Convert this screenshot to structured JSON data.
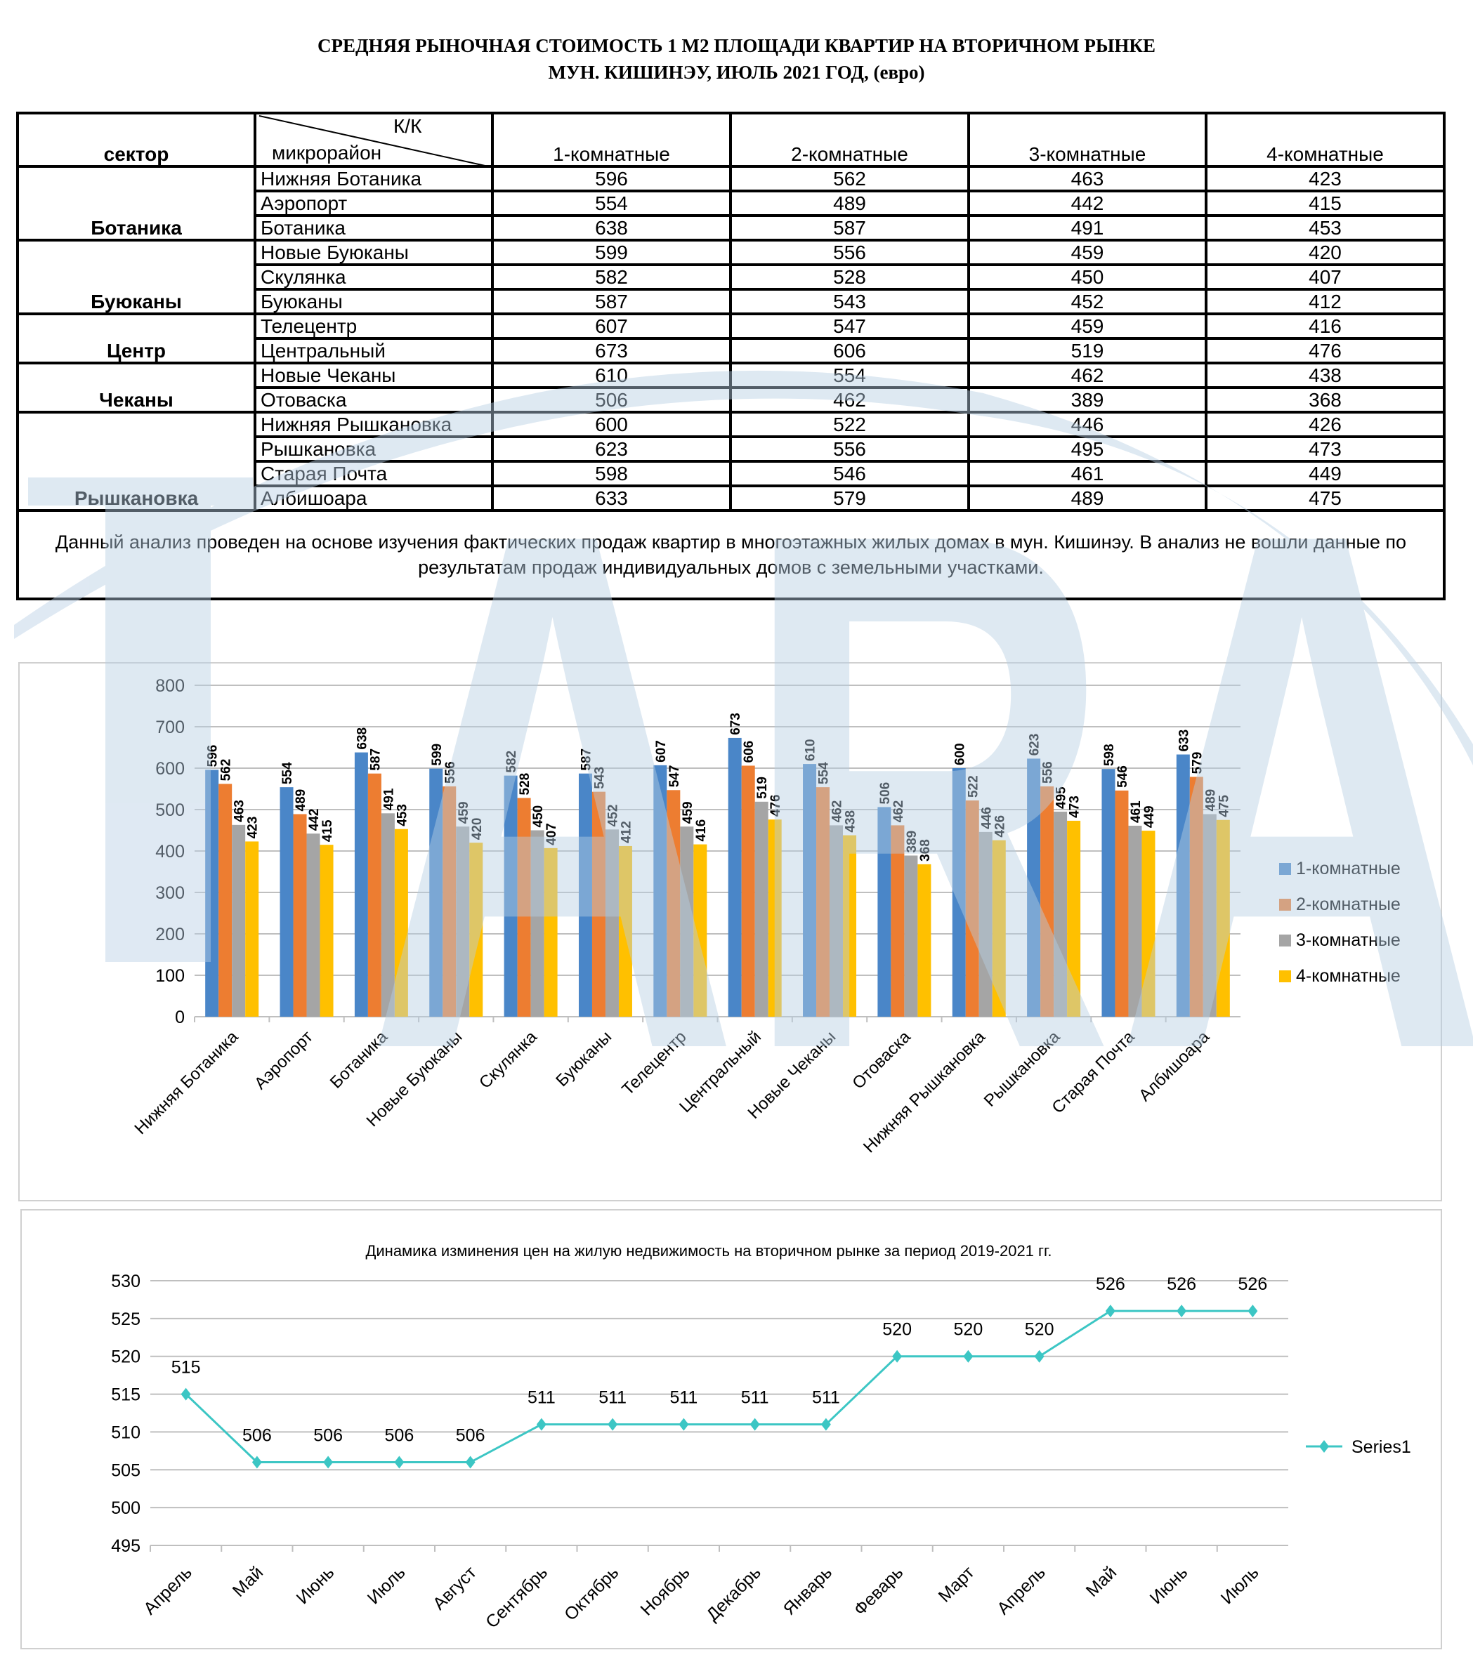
{
  "title_line1": "СРЕДНЯЯ  РЫНОЧНАЯ  СТОИМОСТЬ  1 М2  ПЛОЩАДИ  КВАРТИР НА ВТОРИЧНОМ РЫНКЕ",
  "title_line2": "МУН.  КИШИНЭУ, ИЮЛЬ 2021 ГОД, (евро)",
  "watermark_logo": "ARA",
  "colors": {
    "c1": "#4a86c8",
    "c2": "#ed7d31",
    "c3": "#a5a5a5",
    "c4": "#ffc000",
    "line": "#3cc6c4",
    "watermark": "#b7cfe4"
  },
  "table": {
    "header": {
      "sector": "сектор",
      "kk": "К/К",
      "district": "микрорайон",
      "cols": [
        "1-комнатные",
        "2-комнатные",
        "3-комнатные",
        "4-комнатные"
      ]
    },
    "sectors": [
      {
        "name": "Ботаника",
        "rows": [
          [
            "Нижняя Ботаника",
            596,
            562,
            463,
            423
          ],
          [
            "Аэропорт",
            554,
            489,
            442,
            415
          ],
          [
            "Ботаника",
            638,
            587,
            491,
            453
          ]
        ]
      },
      {
        "name": "Буюканы",
        "rows": [
          [
            "Новые Буюканы",
            599,
            556,
            459,
            420
          ],
          [
            "Скулянка",
            582,
            528,
            450,
            407
          ],
          [
            "Буюканы",
            587,
            543,
            452,
            412
          ]
        ]
      },
      {
        "name": "Центр",
        "rows": [
          [
            "Телецентр",
            607,
            547,
            459,
            416
          ],
          [
            "Центральный",
            673,
            606,
            519,
            476
          ]
        ]
      },
      {
        "name": "Чеканы",
        "rows": [
          [
            "Новые Чеканы",
            610,
            554,
            462,
            438
          ],
          [
            "Отоваска",
            506,
            462,
            389,
            368
          ]
        ]
      },
      {
        "name": "Рышкановка",
        "rows": [
          [
            "Нижняя Рышкановка",
            600,
            522,
            446,
            426
          ],
          [
            "Рышкановка",
            623,
            556,
            495,
            473
          ],
          [
            "Старая Почта",
            598,
            546,
            461,
            449
          ],
          [
            "Албишоара",
            633,
            579,
            489,
            475
          ]
        ]
      }
    ],
    "note": "Данный анализ проведен на основе изучения фактических продаж квартир в многоэтажных жилых домах в мун. Кишинэу. В анализ не вошли данные по результатам  продаж индивидуальных домов с земельными участками."
  },
  "chart_data": [
    {
      "type": "bar",
      "title": "",
      "xlabel": "",
      "ylabel": "",
      "ylim": [
        0,
        800
      ],
      "yticks": [
        0,
        100,
        200,
        300,
        400,
        500,
        600,
        700,
        800
      ],
      "grid": true,
      "legend": "right",
      "categories": [
        "Нижняя Ботаника",
        "Аэропорт",
        "Ботаника",
        "Новые Буюканы",
        "Скулянка",
        "Буюканы",
        "Телецентр",
        "Центральный",
        "Новые Чеканы",
        "Отоваска",
        "Нижняя Рышкановка",
        "Рышкановка",
        "Старая Почта",
        "Албишоара"
      ],
      "series": [
        {
          "name": "1-комнатные",
          "values": [
            596,
            554,
            638,
            599,
            582,
            587,
            607,
            673,
            610,
            506,
            600,
            623,
            598,
            633
          ]
        },
        {
          "name": "2-комнатные",
          "values": [
            562,
            489,
            587,
            556,
            528,
            543,
            547,
            606,
            554,
            462,
            522,
            556,
            546,
            579
          ]
        },
        {
          "name": "3-комнатные",
          "values": [
            463,
            442,
            491,
            459,
            450,
            452,
            459,
            519,
            462,
            389,
            446,
            495,
            461,
            489
          ]
        },
        {
          "name": "4-комнатные",
          "values": [
            423,
            415,
            453,
            420,
            407,
            412,
            416,
            476,
            438,
            368,
            426,
            473,
            449,
            475
          ]
        }
      ]
    },
    {
      "type": "line",
      "title": "Динамика изминения цен на жилую недвижимость на вторичном рынке за период 2019-2021 гг.",
      "xlabel": "",
      "ylabel": "",
      "ylim": [
        495,
        530
      ],
      "yticks": [
        495,
        500,
        505,
        510,
        515,
        520,
        525,
        530
      ],
      "grid": true,
      "legend": "right",
      "categories": [
        "Апрель",
        "Май",
        "Июнь",
        "Июль",
        "Август",
        "Сентябрь",
        "Октябрь",
        "Ноябрь",
        "Декабрь",
        "Январь",
        "Феварь",
        "Март",
        "Апрель",
        "Май",
        "Июнь",
        "Июль"
      ],
      "series": [
        {
          "name": "Series1",
          "values": [
            515,
            506,
            506,
            506,
            506,
            511,
            511,
            511,
            511,
            511,
            520,
            520,
            520,
            526,
            526,
            526
          ]
        }
      ]
    }
  ]
}
